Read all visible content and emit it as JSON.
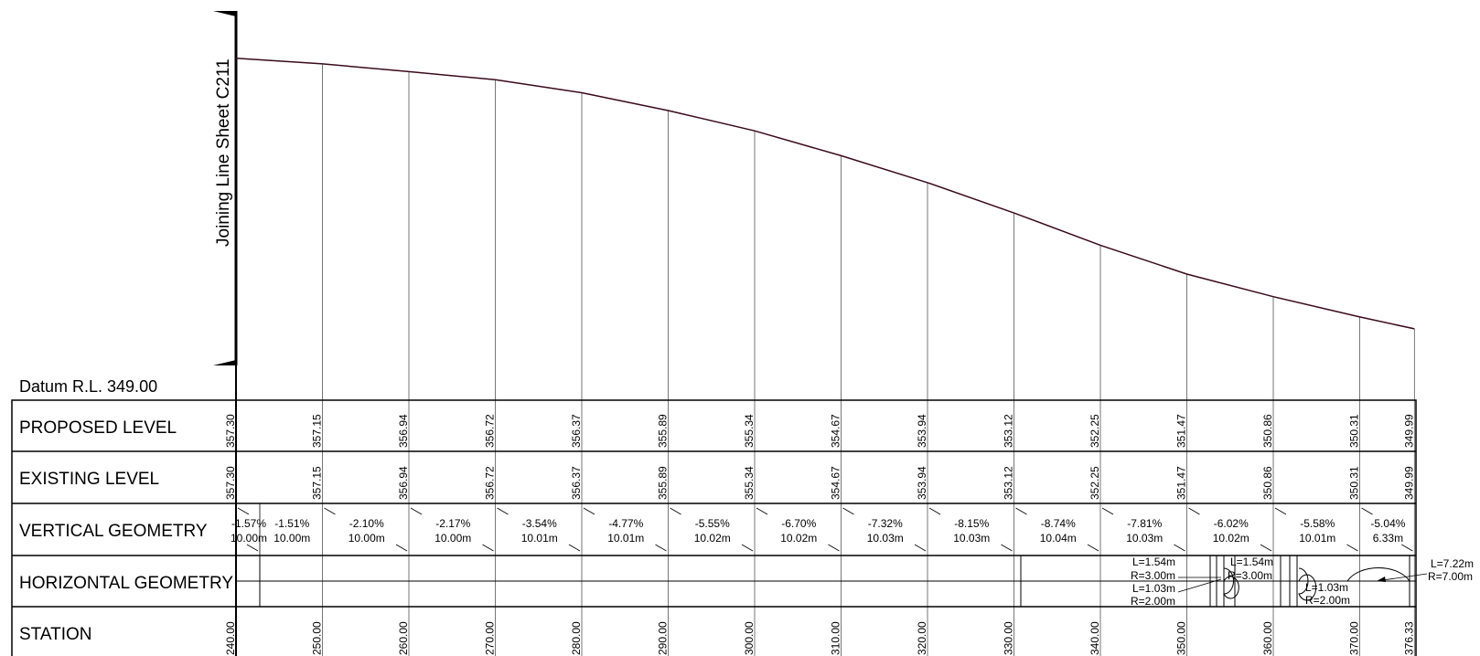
{
  "joining_line_label": "Joining Line Sheet C211",
  "datum_label": "Datum R.L. 349.00",
  "rows": {
    "proposed": "PROPOSED LEVEL",
    "existing": "EXISTING LEVEL",
    "vertical": "VERTICAL GEOMETRY",
    "horizontal": "HORIZONTAL GEOMETRY",
    "station": "STATION"
  },
  "stations": [
    {
      "station": "240.00",
      "proposed": "357.30",
      "existing": "357.30"
    },
    {
      "station": "250.00",
      "proposed": "357.15",
      "existing": "357.15"
    },
    {
      "station": "260.00",
      "proposed": "356.94",
      "existing": "356.94"
    },
    {
      "station": "270.00",
      "proposed": "356.72",
      "existing": "356.72"
    },
    {
      "station": "280.00",
      "proposed": "356.37",
      "existing": "356.37"
    },
    {
      "station": "290.00",
      "proposed": "355.89",
      "existing": "355.89"
    },
    {
      "station": "300.00",
      "proposed": "355.34",
      "existing": "355.34"
    },
    {
      "station": "310.00",
      "proposed": "354.67",
      "existing": "354.67"
    },
    {
      "station": "320.00",
      "proposed": "353.94",
      "existing": "353.94"
    },
    {
      "station": "330.00",
      "proposed": "353.12",
      "existing": "353.12"
    },
    {
      "station": "340.00",
      "proposed": "352.25",
      "existing": "352.25"
    },
    {
      "station": "350.00",
      "proposed": "351.47",
      "existing": "351.47"
    },
    {
      "station": "360.00",
      "proposed": "350.86",
      "existing": "350.86"
    },
    {
      "station": "370.00",
      "proposed": "350.31",
      "existing": "350.31"
    },
    {
      "station": "376.33",
      "proposed": "349.99",
      "existing": "349.99"
    }
  ],
  "grades": [
    {
      "grade": "-1.57%",
      "length": "10.00m"
    },
    {
      "grade": "-1.51%",
      "length": "10.00m"
    },
    {
      "grade": "-2.10%",
      "length": "10.00m"
    },
    {
      "grade": "-2.17%",
      "length": "10.00m"
    },
    {
      "grade": "-3.54%",
      "length": "10.01m"
    },
    {
      "grade": "-4.77%",
      "length": "10.01m"
    },
    {
      "grade": "-5.55%",
      "length": "10.02m"
    },
    {
      "grade": "-6.70%",
      "length": "10.02m"
    },
    {
      "grade": "-7.32%",
      "length": "10.03m"
    },
    {
      "grade": "-8.15%",
      "length": "10.03m"
    },
    {
      "grade": "-8.74%",
      "length": "10.04m"
    },
    {
      "grade": "-7.81%",
      "length": "10.03m"
    },
    {
      "grade": "-6.02%",
      "length": "10.02m"
    },
    {
      "grade": "-5.58%",
      "length": "10.01m"
    },
    {
      "grade": "-5.04%",
      "length": "6.33m"
    }
  ],
  "horizontal_labels": {
    "curve1_L": "L=1.54m",
    "curve1_R": "R=3.00m",
    "curve2_L": "L=1.03m",
    "curve2_R": "R=2.00m",
    "curve3_L": "L=1.54m",
    "curve3_R": "R=3.00m",
    "curve4_L": "L=1.03m",
    "curve4_R": "R=2.00m",
    "curve5_L": "L=7.22m",
    "curve5_R": "R=7.00m"
  },
  "colors": {
    "profile_line": "#3a0a1a",
    "line": "#000000",
    "grid": "#555555"
  }
}
